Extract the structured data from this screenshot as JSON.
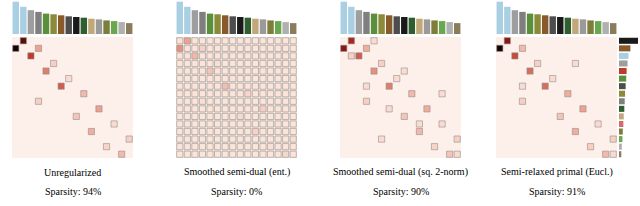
{
  "chart_data": [
    {
      "type": "heatmap",
      "title": "Unregularized",
      "subtitle": "Sparsity: 94%",
      "tick_labels": false,
      "zlim": [
        0,
        100
      ],
      "bars": {
        "ylim": [
          0,
          10
        ],
        "values": [
          9.5,
          8,
          7,
          6.5,
          6,
          5.8,
          5.5,
          5.2,
          5,
          4.8,
          4.5,
          4.3,
          4,
          3.8,
          3.5,
          3.2
        ],
        "colors": [
          "#a9cfe3",
          "#a9cfe3",
          "#9e9e9e",
          "#7f7f7f",
          "#5a8f3c",
          "#8a8a3a",
          "#8b5a2b",
          "#4d4d4d",
          "#1a1a1a",
          "#2f5f2f",
          "#c2a878",
          "#9a9a9a",
          "#7d7d3c",
          "#6aa84f",
          "#b0b0b0",
          "#8c7b5a"
        ]
      },
      "cells": [
        [
          0,
          90,
          0,
          0,
          0,
          0,
          0,
          0,
          0,
          0,
          0,
          0,
          0,
          0,
          0,
          0
        ],
        [
          100,
          0,
          0,
          30,
          0,
          0,
          0,
          0,
          0,
          0,
          0,
          0,
          0,
          0,
          0,
          0
        ],
        [
          0,
          0,
          60,
          0,
          0,
          0,
          0,
          0,
          0,
          0,
          0,
          0,
          0,
          0,
          0,
          0
        ],
        [
          0,
          0,
          0,
          0,
          0,
          10,
          0,
          0,
          0,
          0,
          0,
          0,
          0,
          0,
          0,
          0
        ],
        [
          0,
          0,
          0,
          0,
          40,
          0,
          0,
          0,
          0,
          0,
          0,
          0,
          0,
          0,
          0,
          0
        ],
        [
          0,
          0,
          0,
          0,
          0,
          0,
          0,
          5,
          0,
          0,
          0,
          0,
          0,
          0,
          0,
          0
        ],
        [
          0,
          0,
          0,
          0,
          0,
          0,
          50,
          0,
          0,
          0,
          0,
          0,
          0,
          0,
          0,
          0
        ],
        [
          0,
          0,
          0,
          0,
          0,
          0,
          0,
          0,
          0,
          20,
          0,
          0,
          0,
          0,
          0,
          0
        ],
        [
          0,
          0,
          0,
          10,
          0,
          0,
          0,
          0,
          0,
          0,
          0,
          0,
          0,
          0,
          0,
          0
        ],
        [
          0,
          0,
          0,
          0,
          0,
          0,
          0,
          0,
          0,
          0,
          0,
          30,
          0,
          0,
          0,
          0
        ],
        [
          0,
          0,
          0,
          0,
          0,
          0,
          0,
          0,
          15,
          0,
          0,
          0,
          0,
          0,
          0,
          0
        ],
        [
          0,
          0,
          0,
          0,
          0,
          0,
          0,
          0,
          0,
          0,
          0,
          0,
          0,
          5,
          0,
          0
        ],
        [
          0,
          0,
          0,
          0,
          0,
          0,
          0,
          0,
          0,
          0,
          25,
          0,
          0,
          0,
          0,
          0
        ],
        [
          0,
          0,
          0,
          0,
          0,
          0,
          0,
          0,
          0,
          0,
          0,
          0,
          0,
          0,
          0,
          10
        ],
        [
          0,
          0,
          0,
          0,
          0,
          0,
          0,
          0,
          0,
          0,
          0,
          0,
          8,
          0,
          0,
          0
        ],
        [
          0,
          0,
          0,
          0,
          0,
          0,
          0,
          0,
          0,
          0,
          0,
          0,
          0,
          0,
          20,
          0
        ]
      ]
    },
    {
      "type": "heatmap",
      "title": "Smoothed semi-dual (ent.)",
      "subtitle": "Sparsity: 0%",
      "tick_labels": false,
      "zlim": [
        0,
        100
      ],
      "bars": {
        "ylim": [
          0,
          10
        ],
        "values": [
          9.5,
          8,
          7,
          6.5,
          6,
          5.8,
          5.5,
          5.2,
          5,
          4.8,
          4.5,
          4.3,
          4,
          3.8,
          3.5,
          3.2
        ],
        "colors": [
          "#a9cfe3",
          "#a9cfe3",
          "#9e9e9e",
          "#7f7f7f",
          "#5a8f3c",
          "#8a8a3a",
          "#8b5a2b",
          "#4d4d4d",
          "#1a1a1a",
          "#2f5f2f",
          "#c2a878",
          "#9a9a9a",
          "#7d7d3c",
          "#6aa84f",
          "#b0b0b0",
          "#8c7b5a"
        ]
      },
      "cells": [
        [
          2,
          30,
          1,
          1,
          1,
          1,
          1,
          1,
          1,
          1,
          1,
          1,
          1,
          1,
          1,
          1
        ],
        [
          35,
          2,
          1,
          10,
          1,
          1,
          1,
          1,
          1,
          1,
          1,
          1,
          1,
          1,
          1,
          1
        ],
        [
          1,
          2,
          20,
          1,
          1,
          1,
          1,
          1,
          1,
          1,
          1,
          1,
          1,
          1,
          1,
          1
        ],
        [
          1,
          1,
          1,
          1,
          1,
          4,
          1,
          1,
          1,
          1,
          1,
          1,
          1,
          1,
          1,
          1
        ],
        [
          1,
          1,
          1,
          1,
          15,
          1,
          1,
          1,
          1,
          1,
          1,
          1,
          1,
          1,
          1,
          1
        ],
        [
          1,
          1,
          1,
          1,
          1,
          1,
          1,
          2,
          1,
          1,
          1,
          1,
          1,
          1,
          1,
          1
        ],
        [
          1,
          1,
          1,
          1,
          1,
          1,
          18,
          1,
          1,
          1,
          1,
          1,
          1,
          1,
          1,
          1
        ],
        [
          1,
          1,
          1,
          1,
          1,
          1,
          1,
          1,
          1,
          8,
          1,
          1,
          1,
          1,
          1,
          1
        ],
        [
          1,
          1,
          1,
          4,
          1,
          1,
          1,
          1,
          1,
          1,
          1,
          1,
          1,
          1,
          1,
          1
        ],
        [
          1,
          1,
          1,
          1,
          1,
          1,
          1,
          1,
          1,
          1,
          1,
          10,
          1,
          1,
          1,
          1
        ],
        [
          1,
          1,
          1,
          1,
          1,
          1,
          1,
          1,
          6,
          1,
          1,
          1,
          1,
          1,
          1,
          1
        ],
        [
          1,
          1,
          1,
          1,
          1,
          1,
          1,
          1,
          1,
          1,
          1,
          1,
          1,
          2,
          1,
          1
        ],
        [
          1,
          1,
          1,
          1,
          1,
          1,
          1,
          1,
          1,
          1,
          9,
          1,
          1,
          1,
          1,
          1
        ],
        [
          1,
          1,
          1,
          1,
          1,
          1,
          1,
          1,
          1,
          1,
          1,
          1,
          1,
          1,
          1,
          4
        ],
        [
          1,
          1,
          1,
          1,
          1,
          1,
          1,
          1,
          1,
          1,
          1,
          1,
          3,
          1,
          1,
          1
        ],
        [
          1,
          1,
          1,
          1,
          1,
          1,
          1,
          1,
          1,
          1,
          1,
          1,
          1,
          1,
          7,
          1
        ]
      ]
    },
    {
      "type": "heatmap",
      "title": "Smoothed semi-dual (sq. 2-norm)",
      "subtitle": "Sparsity: 90%",
      "tick_labels": false,
      "zlim": [
        0,
        100
      ],
      "bars": {
        "ylim": [
          0,
          10
        ],
        "values": [
          9.5,
          8,
          7,
          6.5,
          6,
          5.8,
          5.5,
          5.2,
          5,
          4.8,
          4.5,
          4.3,
          4,
          3.8,
          3.5,
          3.2
        ],
        "colors": [
          "#a9cfe3",
          "#a9cfe3",
          "#9e9e9e",
          "#7f7f7f",
          "#5a8f3c",
          "#8a8a3a",
          "#8b5a2b",
          "#4d4d4d",
          "#1a1a1a",
          "#2f5f2f",
          "#c2a878",
          "#9a9a9a",
          "#7d7d3c",
          "#6aa84f",
          "#b0b0b0",
          "#8c7b5a"
        ]
      },
      "cells": [
        [
          0,
          70,
          0,
          0,
          5,
          0,
          0,
          0,
          0,
          0,
          0,
          0,
          0,
          0,
          0,
          0
        ],
        [
          80,
          0,
          0,
          25,
          0,
          0,
          0,
          0,
          0,
          0,
          0,
          0,
          0,
          0,
          0,
          0
        ],
        [
          0,
          10,
          50,
          0,
          0,
          0,
          0,
          0,
          0,
          0,
          0,
          0,
          0,
          0,
          0,
          0
        ],
        [
          0,
          0,
          0,
          0,
          0,
          10,
          0,
          0,
          0,
          0,
          0,
          0,
          0,
          0,
          0,
          0
        ],
        [
          0,
          0,
          0,
          0,
          35,
          0,
          0,
          0,
          5,
          0,
          0,
          0,
          0,
          0,
          0,
          0
        ],
        [
          0,
          0,
          0,
          0,
          0,
          0,
          0,
          5,
          0,
          0,
          0,
          0,
          0,
          0,
          0,
          0
        ],
        [
          0,
          0,
          0,
          5,
          0,
          0,
          40,
          0,
          0,
          0,
          0,
          0,
          0,
          0,
          0,
          0
        ],
        [
          0,
          0,
          0,
          0,
          0,
          0,
          0,
          0,
          0,
          20,
          0,
          0,
          0,
          5,
          0,
          0
        ],
        [
          0,
          0,
          0,
          10,
          0,
          0,
          0,
          0,
          0,
          0,
          0,
          0,
          0,
          0,
          0,
          0
        ],
        [
          0,
          0,
          0,
          0,
          0,
          0,
          5,
          0,
          0,
          0,
          0,
          25,
          0,
          0,
          0,
          0
        ],
        [
          0,
          0,
          0,
          0,
          0,
          0,
          0,
          0,
          15,
          0,
          0,
          0,
          0,
          0,
          0,
          0
        ],
        [
          0,
          0,
          0,
          0,
          0,
          0,
          0,
          0,
          0,
          0,
          5,
          0,
          0,
          5,
          0,
          0
        ],
        [
          0,
          0,
          0,
          0,
          0,
          0,
          0,
          0,
          0,
          0,
          20,
          0,
          0,
          0,
          0,
          0
        ],
        [
          0,
          0,
          0,
          0,
          0,
          5,
          0,
          0,
          0,
          0,
          0,
          0,
          0,
          0,
          0,
          10
        ],
        [
          0,
          0,
          0,
          0,
          0,
          0,
          0,
          0,
          0,
          0,
          0,
          0,
          8,
          0,
          0,
          0
        ],
        [
          0,
          0,
          0,
          0,
          0,
          0,
          0,
          0,
          0,
          0,
          0,
          0,
          0,
          0,
          15,
          5
        ]
      ]
    },
    {
      "type": "heatmap",
      "title": "Semi-relaxed primal (Eucl.)",
      "subtitle": "Sparsity: 91%",
      "tick_labels": false,
      "zlim": [
        0,
        100
      ],
      "bars": {
        "ylim": [
          0,
          10
        ],
        "values": [
          9.5,
          8,
          7,
          6.5,
          6,
          5.8,
          5.5,
          5.2,
          5,
          4.8,
          4.5,
          4.3,
          4,
          3.8,
          3.5,
          3.2
        ],
        "colors": [
          "#a9cfe3",
          "#a9cfe3",
          "#9e9e9e",
          "#7f7f7f",
          "#5a8f3c",
          "#8a8a3a",
          "#8b5a2b",
          "#4d4d4d",
          "#1a1a1a",
          "#2f5f2f",
          "#c2a878",
          "#9a9a9a",
          "#7d7d3c",
          "#6aa84f",
          "#b0b0b0",
          "#8c7b5a"
        ]
      },
      "side_bars": {
        "orientation": "horizontal",
        "xlim": [
          0,
          10
        ],
        "values": [
          10,
          6,
          5,
          4.5,
          4,
          3.8,
          3.5,
          3.2,
          3,
          2.8,
          2.5,
          2.3,
          2,
          1.8,
          1.5,
          1.2
        ],
        "colors": [
          "#1a1a1a",
          "#8b5a2b",
          "#a9cfe3",
          "#9e9e9e",
          "#c0392b",
          "#5a8f3c",
          "#4d4d4d",
          "#8a8a3a",
          "#7f7f7f",
          "#2f5f2f",
          "#c2a878",
          "#d46a6a",
          "#7d7d3c",
          "#6aa84f",
          "#b0b0b0",
          "#8c7b5a"
        ]
      },
      "cells": [
        [
          0,
          80,
          0,
          0,
          0,
          0,
          0,
          0,
          0,
          0,
          0,
          0,
          0,
          0,
          0,
          0
        ],
        [
          100,
          0,
          0,
          20,
          0,
          0,
          0,
          0,
          0,
          0,
          0,
          0,
          0,
          0,
          0,
          0
        ],
        [
          0,
          0,
          55,
          0,
          0,
          0,
          0,
          0,
          0,
          0,
          0,
          0,
          0,
          0,
          0,
          0
        ],
        [
          0,
          0,
          0,
          0,
          0,
          10,
          0,
          0,
          0,
          0,
          5,
          0,
          0,
          0,
          0,
          0
        ],
        [
          0,
          0,
          0,
          0,
          45,
          0,
          0,
          0,
          0,
          0,
          0,
          0,
          0,
          0,
          0,
          0
        ],
        [
          0,
          0,
          0,
          0,
          0,
          0,
          0,
          5,
          0,
          0,
          0,
          0,
          0,
          0,
          0,
          0
        ],
        [
          0,
          0,
          0,
          5,
          0,
          0,
          45,
          0,
          0,
          0,
          0,
          0,
          0,
          0,
          0,
          0
        ],
        [
          0,
          0,
          0,
          0,
          0,
          0,
          0,
          0,
          0,
          25,
          0,
          0,
          0,
          0,
          0,
          0
        ],
        [
          0,
          0,
          0,
          10,
          0,
          0,
          0,
          0,
          0,
          0,
          0,
          0,
          0,
          0,
          0,
          0
        ],
        [
          0,
          0,
          0,
          0,
          0,
          0,
          0,
          0,
          0,
          0,
          0,
          30,
          0,
          0,
          0,
          0
        ],
        [
          0,
          0,
          0,
          0,
          0,
          0,
          0,
          0,
          15,
          0,
          0,
          0,
          0,
          0,
          0,
          0
        ],
        [
          0,
          0,
          0,
          0,
          0,
          0,
          0,
          0,
          0,
          0,
          0,
          0,
          0,
          5,
          0,
          0
        ],
        [
          0,
          0,
          0,
          0,
          0,
          0,
          0,
          0,
          0,
          0,
          25,
          0,
          0,
          0,
          0,
          0
        ],
        [
          0,
          0,
          0,
          0,
          0,
          0,
          0,
          0,
          0,
          0,
          0,
          0,
          0,
          0,
          0,
          10
        ],
        [
          0,
          0,
          0,
          0,
          0,
          0,
          0,
          0,
          0,
          0,
          0,
          0,
          10,
          0,
          0,
          0
        ],
        [
          0,
          0,
          0,
          0,
          0,
          0,
          0,
          0,
          0,
          0,
          0,
          0,
          0,
          0,
          20,
          5
        ]
      ]
    }
  ]
}
